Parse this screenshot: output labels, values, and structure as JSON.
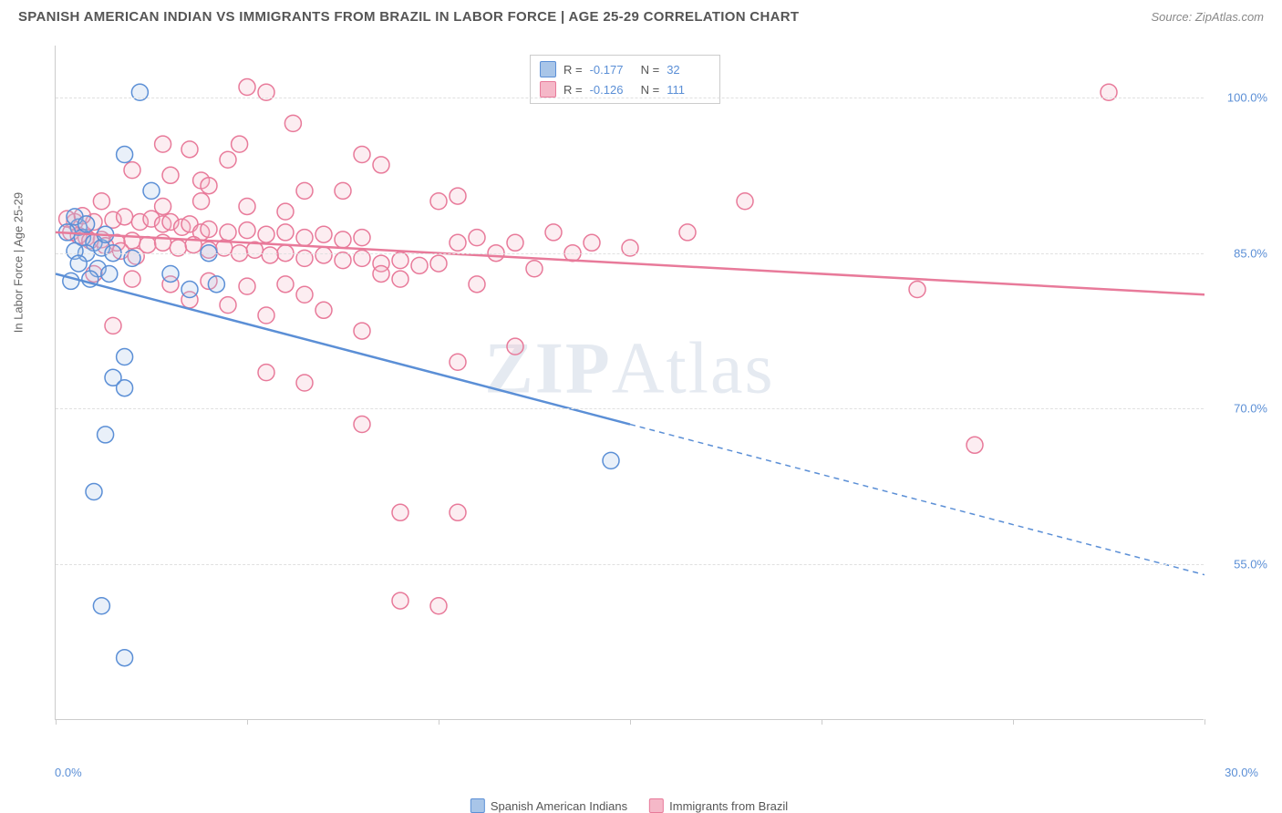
{
  "header": {
    "title": "SPANISH AMERICAN INDIAN VS IMMIGRANTS FROM BRAZIL IN LABOR FORCE | AGE 25-29 CORRELATION CHART",
    "source": "Source: ZipAtlas.com"
  },
  "chart": {
    "type": "scatter",
    "y_axis_label": "In Labor Force | Age 25-29",
    "xlim": [
      0,
      30
    ],
    "ylim": [
      40,
      105
    ],
    "x_ticks": [
      0,
      5,
      10,
      15,
      20,
      25,
      30
    ],
    "x_tick_labels": {
      "left": "0.0%",
      "right": "30.0%"
    },
    "y_gridlines": [
      55,
      70,
      85,
      100
    ],
    "y_tick_labels": [
      "55.0%",
      "70.0%",
      "85.0%",
      "100.0%"
    ],
    "grid_color": "#e0e0e0",
    "axis_color": "#cccccc",
    "tick_label_color": "#5b8fd6",
    "background_color": "#ffffff",
    "marker_radius": 9,
    "marker_stroke_width": 1.5,
    "marker_fill_opacity": 0.25,
    "line_width": 2.5,
    "watermark": {
      "text_bold": "ZIP",
      "text_rest": "Atlas",
      "color": "rgba(150,170,200,0.25)",
      "fontsize": 80
    }
  },
  "series": {
    "blue": {
      "label": "Spanish American Indians",
      "stroke": "#5b8fd6",
      "fill": "#a8c5e8",
      "R": "-0.177",
      "N": "32",
      "trend": {
        "x1": 0,
        "y1": 83,
        "x2_solid": 15,
        "y2_solid": 68.5,
        "x2": 30,
        "y2": 54
      },
      "points": [
        [
          2.2,
          100.5
        ],
        [
          1.8,
          94.5
        ],
        [
          2.5,
          91
        ],
        [
          0.6,
          87.5
        ],
        [
          0.3,
          87
        ],
        [
          0.7,
          86.5
        ],
        [
          1.0,
          86
        ],
        [
          1.2,
          85.5
        ],
        [
          0.8,
          85
        ],
        [
          0.5,
          85.2
        ],
        [
          1.5,
          85
        ],
        [
          2.0,
          84.5
        ],
        [
          0.6,
          84
        ],
        [
          1.1,
          83.5
        ],
        [
          1.4,
          83
        ],
        [
          0.9,
          82.5
        ],
        [
          0.4,
          82.3
        ],
        [
          4.0,
          85
        ],
        [
          3.0,
          83
        ],
        [
          4.2,
          82
        ],
        [
          3.5,
          81.5
        ],
        [
          1.8,
          75
        ],
        [
          1.5,
          73
        ],
        [
          1.8,
          72
        ],
        [
          1.3,
          67.5
        ],
        [
          1.0,
          62
        ],
        [
          14.5,
          65
        ],
        [
          1.2,
          51
        ],
        [
          1.8,
          46
        ],
        [
          0.5,
          88.5
        ],
        [
          1.3,
          86.8
        ],
        [
          0.8,
          87.8
        ]
      ]
    },
    "pink": {
      "label": "Immigrants from Brazil",
      "stroke": "#e87a9a",
      "fill": "#f5b8c8",
      "R": "-0.126",
      "N": "111",
      "trend": {
        "x1": 0,
        "y1": 87,
        "x2_solid": 30,
        "y2_solid": 81,
        "x2": 30,
        "y2": 81
      },
      "points": [
        [
          5.0,
          101
        ],
        [
          5.5,
          100.5
        ],
        [
          27.5,
          100.5
        ],
        [
          6.2,
          97.5
        ],
        [
          4.8,
          95.5
        ],
        [
          2.8,
          95.5
        ],
        [
          3.5,
          95
        ],
        [
          8.0,
          94.5
        ],
        [
          4.5,
          94
        ],
        [
          8.5,
          93.5
        ],
        [
          2.0,
          93
        ],
        [
          3.0,
          92.5
        ],
        [
          3.8,
          92
        ],
        [
          4.0,
          91.5
        ],
        [
          6.5,
          91
        ],
        [
          7.5,
          91
        ],
        [
          10.0,
          90
        ],
        [
          10.5,
          90.5
        ],
        [
          18.0,
          90
        ],
        [
          0.5,
          88
        ],
        [
          1.0,
          88
        ],
        [
          1.5,
          88.2
        ],
        [
          1.8,
          88.5
        ],
        [
          2.2,
          88
        ],
        [
          2.5,
          88.3
        ],
        [
          2.8,
          87.8
        ],
        [
          3.0,
          88
        ],
        [
          3.3,
          87.5
        ],
        [
          3.5,
          87.8
        ],
        [
          3.8,
          87
        ],
        [
          4.0,
          87.3
        ],
        [
          4.5,
          87
        ],
        [
          5.0,
          87.2
        ],
        [
          5.5,
          86.8
        ],
        [
          6.0,
          87
        ],
        [
          6.5,
          86.5
        ],
        [
          7.0,
          86.8
        ],
        [
          7.5,
          86.3
        ],
        [
          8.0,
          86.5
        ],
        [
          0.8,
          86.5
        ],
        [
          1.2,
          86.3
        ],
        [
          1.6,
          86
        ],
        [
          2.0,
          86.2
        ],
        [
          2.4,
          85.8
        ],
        [
          2.8,
          86
        ],
        [
          3.2,
          85.5
        ],
        [
          3.6,
          85.8
        ],
        [
          4.0,
          85.3
        ],
        [
          4.4,
          85.5
        ],
        [
          4.8,
          85
        ],
        [
          5.2,
          85.3
        ],
        [
          5.6,
          84.8
        ],
        [
          6.0,
          85
        ],
        [
          6.5,
          84.5
        ],
        [
          7.0,
          84.8
        ],
        [
          7.5,
          84.3
        ],
        [
          8.0,
          84.5
        ],
        [
          8.5,
          84
        ],
        [
          9.0,
          84.3
        ],
        [
          9.5,
          83.8
        ],
        [
          10.0,
          84
        ],
        [
          10.5,
          86
        ],
        [
          11.0,
          86.5
        ],
        [
          11.5,
          85
        ],
        [
          12.0,
          86
        ],
        [
          13.0,
          87
        ],
        [
          14.0,
          86
        ],
        [
          15.0,
          85.5
        ],
        [
          16.5,
          87
        ],
        [
          1.0,
          83
        ],
        [
          2.0,
          82.5
        ],
        [
          3.0,
          82
        ],
        [
          4.0,
          82.3
        ],
        [
          5.0,
          81.8
        ],
        [
          6.0,
          82
        ],
        [
          6.5,
          81
        ],
        [
          7.0,
          79.5
        ],
        [
          3.5,
          80.5
        ],
        [
          4.5,
          80
        ],
        [
          5.5,
          79
        ],
        [
          8.5,
          83
        ],
        [
          9.0,
          82.5
        ],
        [
          11.0,
          82
        ],
        [
          12.5,
          83.5
        ],
        [
          13.5,
          85
        ],
        [
          22.5,
          81.5
        ],
        [
          1.5,
          78
        ],
        [
          8.0,
          77.5
        ],
        [
          10.5,
          74.5
        ],
        [
          12.0,
          76
        ],
        [
          5.5,
          73.5
        ],
        [
          6.5,
          72.5
        ],
        [
          8.0,
          68.5
        ],
        [
          24.0,
          66.5
        ],
        [
          9.0,
          60
        ],
        [
          10.5,
          60
        ],
        [
          9.0,
          51.5
        ],
        [
          10.0,
          51
        ],
        [
          1.2,
          90
        ],
        [
          2.8,
          89.5
        ],
        [
          3.8,
          90
        ],
        [
          5.0,
          89.5
        ],
        [
          6.0,
          89
        ],
        [
          0.4,
          87
        ],
        [
          0.6,
          86.7
        ],
        [
          0.9,
          86.2
        ],
        [
          1.3,
          85.7
        ],
        [
          1.7,
          85.2
        ],
        [
          2.1,
          84.7
        ],
        [
          0.3,
          88.3
        ],
        [
          0.7,
          88.6
        ]
      ]
    }
  }
}
